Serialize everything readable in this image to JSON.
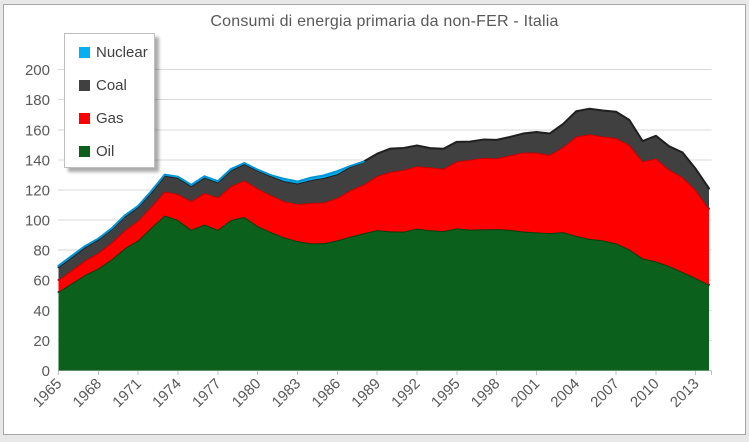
{
  "chart_data": {
    "type": "area",
    "stacked": true,
    "title": "Consumi di energia primaria da non-FER - Italia",
    "grid": true,
    "ylim": [
      0,
      200
    ],
    "y_ticks": [
      0,
      20,
      40,
      60,
      80,
      100,
      120,
      140,
      160,
      180,
      200
    ],
    "x_tick_years": [
      1965,
      1968,
      1971,
      1974,
      1977,
      1980,
      1983,
      1986,
      1989,
      1992,
      1995,
      1998,
      2001,
      2004,
      2007,
      2010,
      2013
    ],
    "axis_text_color": "#595959",
    "grid_color": "#D9D9D9",
    "axis_line_color": "#BFBFBF",
    "x": [
      1965,
      1966,
      1967,
      1968,
      1969,
      1970,
      1971,
      1972,
      1973,
      1974,
      1975,
      1976,
      1977,
      1978,
      1979,
      1980,
      1981,
      1982,
      1983,
      1984,
      1985,
      1986,
      1987,
      1988,
      1989,
      1990,
      1991,
      1992,
      1993,
      1994,
      1995,
      1996,
      1997,
      1998,
      1999,
      2000,
      2001,
      2002,
      2003,
      2004,
      2005,
      2006,
      2007,
      2008,
      2009,
      2010,
      2011,
      2012,
      2013,
      2014
    ],
    "series": [
      {
        "name": "Oil",
        "color": "#0B611C",
        "edge": "#06400F",
        "values": [
          52.2,
          57.9,
          63.5,
          67.8,
          73.8,
          81.2,
          86.5,
          95.0,
          103.0,
          100.0,
          93.5,
          97.0,
          93.5,
          100.0,
          102.0,
          96.0,
          92.0,
          88.5,
          86.0,
          84.5,
          84.6,
          86.5,
          89.0,
          91.2,
          93.3,
          92.5,
          92.3,
          94.3,
          93.2,
          92.6,
          94.5,
          93.6,
          93.8,
          94.0,
          93.5,
          92.4,
          91.8,
          91.3,
          92.0,
          89.5,
          87.5,
          86.5,
          84.5,
          80.5,
          74.5,
          72.5,
          69.5,
          65.5,
          61.5,
          57.0
        ]
      },
      {
        "name": "Gas",
        "color": "#FE0000",
        "edge": "#C80000",
        "values": [
          8.0,
          8.8,
          9.6,
          10.4,
          11.2,
          12.0,
          13.2,
          14.2,
          16.0,
          17.2,
          19.0,
          21.0,
          21.5,
          22.6,
          24.3,
          25.0,
          24.5,
          24.0,
          24.6,
          26.8,
          27.1,
          28.2,
          30.8,
          32.5,
          36.0,
          39.5,
          41.0,
          41.5,
          41.8,
          41.5,
          44.5,
          46.5,
          47.5,
          47.0,
          49.5,
          52.5,
          53.0,
          52.0,
          56.5,
          66.0,
          69.5,
          69.0,
          70.0,
          69.5,
          64.5,
          68.5,
          64.0,
          63.0,
          58.5,
          50.5
        ]
      },
      {
        "name": "Coal",
        "color": "#404040",
        "edge": "#1F1F1F",
        "values": [
          8.5,
          8.6,
          8.8,
          8.9,
          9.0,
          9.2,
          8.9,
          9.2,
          10.5,
          10.8,
          10.0,
          10.2,
          10.0,
          10.4,
          11.0,
          12.0,
          12.7,
          13.4,
          13.7,
          15.2,
          16.3,
          15.8,
          15.7,
          15.2,
          14.8,
          15.5,
          14.6,
          13.8,
          12.8,
          13.3,
          13.0,
          12.0,
          12.2,
          12.3,
          12.2,
          12.6,
          13.7,
          14.2,
          15.3,
          16.8,
          17.0,
          17.3,
          17.5,
          16.5,
          13.5,
          15.0,
          15.5,
          16.5,
          14.0,
          13.5
        ]
      },
      {
        "name": "Nuclear",
        "color": "#00B0F0",
        "edge": "#0095D5",
        "values": [
          0.9,
          0.9,
          0.8,
          0.6,
          0.4,
          0.7,
          0.8,
          0.9,
          0.7,
          0.8,
          0.9,
          0.9,
          0.8,
          1.0,
          0.6,
          0.5,
          0.6,
          1.5,
          1.3,
          1.6,
          1.7,
          2.0,
          0.5,
          0,
          0,
          0,
          0,
          0,
          0,
          0,
          0,
          0,
          0,
          0,
          0,
          0,
          0,
          0,
          0,
          0,
          0,
          0,
          0,
          0,
          0,
          0,
          0,
          0,
          0,
          0
        ]
      }
    ],
    "legend": {
      "position": "top-left",
      "items": [
        {
          "label": "Nuclear",
          "color": "#00B0F0"
        },
        {
          "label": "Coal",
          "color": "#404040"
        },
        {
          "label": "Gas",
          "color": "#FE0000"
        },
        {
          "label": "Oil",
          "color": "#0B611C"
        }
      ]
    }
  }
}
